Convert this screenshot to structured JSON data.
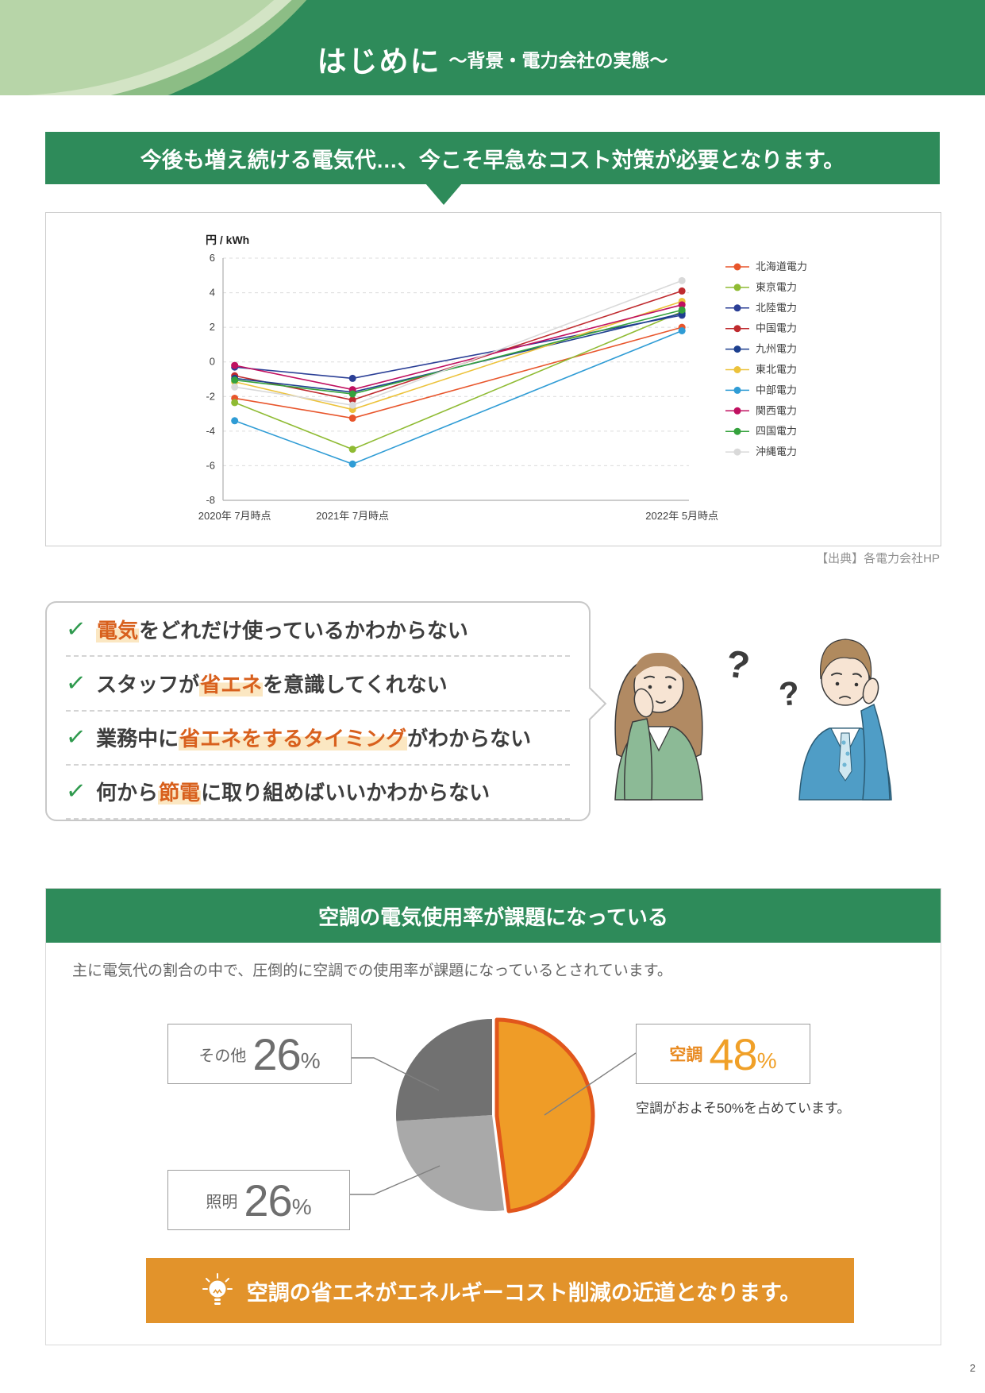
{
  "page": {
    "number": "2"
  },
  "header": {
    "title": "はじめに",
    "subtitle": "～背景・電力会社の実態～"
  },
  "intro_banner": {
    "text": "今後も増え続ける電気代…、今こそ早急なコスト対策が必要となります。"
  },
  "chart_data": [
    {
      "type": "line",
      "unit_label": "円 / kWh",
      "x_labels": [
        "2020年 7月時点",
        "2021年 7月時点",
        "2022年 5月時点"
      ],
      "x_positions": [
        0.025,
        0.278,
        0.985
      ],
      "ylim": [
        -8,
        6
      ],
      "ytick_step": 2,
      "grid": "dashed-horizontal",
      "legend_position": "right",
      "series": [
        {
          "name": "北海道電力",
          "color": "#e8552b",
          "values": [
            -2.1,
            -3.25,
            2.0
          ]
        },
        {
          "name": "東京電力",
          "color": "#8fbb33",
          "values": [
            -2.35,
            -5.05,
            2.9
          ]
        },
        {
          "name": "北陸電力",
          "color": "#2b3f96",
          "values": [
            -0.3,
            -0.95,
            2.7
          ]
        },
        {
          "name": "中国電力",
          "color": "#bf2a2e",
          "values": [
            -0.8,
            -2.2,
            4.1
          ]
        },
        {
          "name": "九州電力",
          "color": "#1c3f8e",
          "values": [
            -0.95,
            -1.75,
            2.8
          ]
        },
        {
          "name": "東北電力",
          "color": "#ecc23a",
          "values": [
            -1.15,
            -2.75,
            3.5
          ]
        },
        {
          "name": "中部電力",
          "color": "#2f9cd5",
          "values": [
            -3.4,
            -5.9,
            1.8
          ]
        },
        {
          "name": "関西電力",
          "color": "#c01060",
          "values": [
            -0.2,
            -1.6,
            3.3
          ]
        },
        {
          "name": "四国電力",
          "color": "#35a23d",
          "values": [
            -1.05,
            -1.85,
            3.0
          ]
        },
        {
          "name": "沖縄電力",
          "color": "#d9d9d9",
          "values": [
            -1.45,
            -2.5,
            4.7
          ]
        }
      ],
      "source": "【出典】各電力会社HP"
    },
    {
      "type": "pie",
      "start_angle_deg": 0,
      "direction": "clockwise",
      "unit": "%",
      "slices": [
        {
          "label": "空調",
          "value": 48,
          "color": "#ef9c27",
          "stroke": "#e1561c",
          "exploded": true
        },
        {
          "label": "照明",
          "value": 26,
          "color": "#a9a9a9"
        },
        {
          "label": "その他",
          "value": 26,
          "color": "#717171"
        }
      ],
      "note": "空調がおよそ50%を占めています。"
    }
  ],
  "problem_list": {
    "check_glyph": "✓",
    "items": [
      {
        "pre": "",
        "highlight": "電気",
        "post": "をどれだけ使っているかわからない"
      },
      {
        "pre": "スタッフが",
        "highlight": "省エネ",
        "post": "を意識してくれない"
      },
      {
        "pre": "業務中に",
        "highlight": "省エネをするタイミング",
        "post": "がわからない"
      },
      {
        "pre": "何から",
        "highlight": "節電",
        "post": "に取り組めばいいかわからない"
      }
    ]
  },
  "illustration": {
    "question_mark_woman": "?",
    "question_mark_man": "?"
  },
  "aircon_section": {
    "banner": "空調の電気使用率が課題になっている",
    "lead": "主に電気代の割合の中で、圧倒的に空調での使用率が課題になっているとされています。"
  },
  "conclusion_banner": {
    "text": "空調の省エネがエネルギーコスト削減の近道となります。"
  },
  "accent_colors": {
    "green": "#2e8b5a",
    "orange_text": "#d8601d",
    "text_highlight": "#fbe7c2",
    "conclusion_orange": "#e2932b"
  }
}
